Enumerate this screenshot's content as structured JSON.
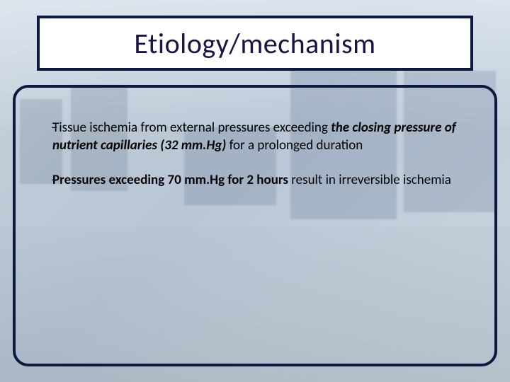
{
  "slide": {
    "title": "Etiology/mechanism",
    "bullets": [
      {
        "pre": "Tissue ischemia from external pressures exceeding ",
        "emph": "the closing pressure of nutrient capillaries (32 mm.Hg)",
        "post": " for a prolonged duration"
      },
      {
        "pre": "",
        "emph": "Pressures exceeding 70 mm.Hg for 2 hours",
        "post": " result in irreversible ischemia"
      }
    ]
  },
  "style": {
    "title_color": "#1a1446",
    "title_fontsize": 40,
    "body_fontsize": 19,
    "border_color": "#0d1a40",
    "border_width": 4,
    "title_box_bg": "#ffffff",
    "frame_border_radius": 22,
    "slide_width": 720,
    "slide_height": 540,
    "background_tint": "#c5d0dc"
  }
}
